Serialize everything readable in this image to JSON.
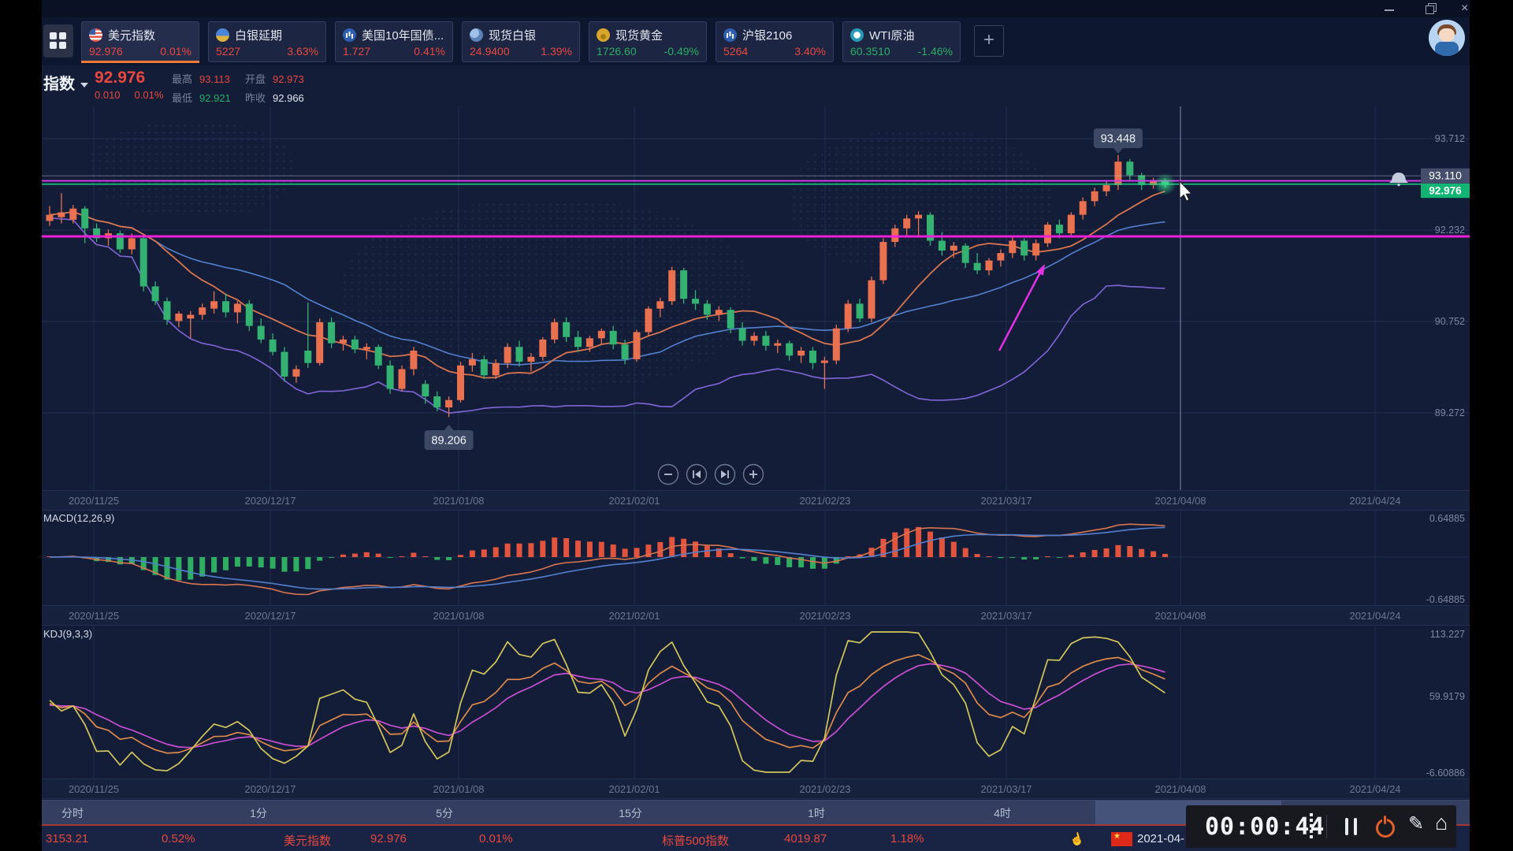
{
  "window": {
    "minimize": "minimize",
    "restore": "restore",
    "close": "close"
  },
  "add_tab_label": "+",
  "tabs": [
    {
      "name": "美元指数",
      "value": "92.976",
      "pct": "0.01%",
      "dir": "up",
      "icon": "us",
      "active": true
    },
    {
      "name": "白银延期",
      "value": "5227",
      "pct": "3.63%",
      "dir": "up",
      "icon": "silver",
      "active": false
    },
    {
      "name": "美国10年国债...",
      "value": "1.727",
      "pct": "0.41%",
      "dir": "up",
      "icon": "bond",
      "active": false
    },
    {
      "name": "现货白银",
      "value": "24.9400",
      "pct": "1.39%",
      "dir": "up",
      "icon": "spotsilver",
      "active": false
    },
    {
      "name": "现货黄金",
      "value": "1726.60",
      "pct": "-0.49%",
      "dir": "down",
      "icon": "gold",
      "active": false
    },
    {
      "name": "沪银2106",
      "value": "5264",
      "pct": "3.40%",
      "dir": "up",
      "icon": "shfe",
      "active": false
    },
    {
      "name": "WTI原油",
      "value": "60.3510",
      "pct": "-1.46%",
      "dir": "down",
      "icon": "wti",
      "active": false
    }
  ],
  "header": {
    "symbol": "指数",
    "price": "92.976",
    "change": "0.010",
    "change_pct": "0.01%",
    "stats": [
      {
        "label": "最高",
        "value": "93.113",
        "cls": "red"
      },
      {
        "label": "开盘",
        "value": "92.973",
        "cls": "red"
      },
      {
        "label": "最低",
        "value": "92.921",
        "cls": "green"
      },
      {
        "label": "昨收",
        "value": "92.966",
        "cls": "white"
      }
    ]
  },
  "chart_data": {
    "type": "candlestick",
    "symbol": "美元指数",
    "x_labels": [
      "2020/11/25",
      "2020/12/17",
      "2021/01/08",
      "2021/02/01",
      "2021/02/23",
      "2021/03/17",
      "2021/04/08",
      "2021/04/24"
    ],
    "y_axis_main": [
      "93.712",
      "92.232",
      "90.752",
      "89.272"
    ],
    "ma": {
      "fast": 10,
      "slow": 21
    },
    "candles": [
      [
        92.38,
        92.62,
        92.3,
        92.48
      ],
      [
        92.44,
        92.83,
        92.34,
        92.52
      ],
      [
        92.4,
        92.64,
        92.34,
        92.58
      ],
      [
        92.58,
        92.62,
        92.02,
        92.26
      ],
      [
        92.26,
        92.34,
        92.04,
        92.1
      ],
      [
        92.1,
        92.24,
        91.98,
        92.18
      ],
      [
        92.18,
        92.22,
        91.86,
        91.92
      ],
      [
        91.92,
        92.18,
        91.84,
        92.1
      ],
      [
        92.1,
        92.14,
        91.24,
        91.32
      ],
      [
        91.32,
        91.4,
        91.02,
        91.08
      ],
      [
        91.08,
        91.14,
        90.7,
        90.78
      ],
      [
        90.76,
        90.92,
        90.66,
        90.88
      ],
      [
        90.8,
        90.92,
        90.48,
        90.86
      ],
      [
        90.86,
        91.04,
        90.78,
        90.98
      ],
      [
        90.96,
        91.24,
        90.88,
        91.08
      ],
      [
        91.08,
        91.2,
        90.82,
        90.9
      ],
      [
        90.9,
        91.08,
        90.72,
        91.04
      ],
      [
        91.04,
        91.1,
        90.6,
        90.68
      ],
      [
        90.68,
        90.8,
        90.4,
        90.46
      ],
      [
        90.46,
        90.56,
        90.2,
        90.26
      ],
      [
        90.26,
        90.34,
        89.78,
        89.86
      ],
      [
        89.86,
        90.04,
        89.76,
        89.98
      ],
      [
        90.28,
        91.06,
        90.0,
        90.08
      ],
      [
        90.08,
        90.8,
        90.04,
        90.74
      ],
      [
        90.74,
        90.82,
        90.32,
        90.4
      ],
      [
        90.4,
        90.52,
        90.28,
        90.46
      ],
      [
        90.46,
        90.52,
        90.24,
        90.3
      ],
      [
        90.3,
        90.4,
        90.14,
        90.34
      ],
      [
        90.34,
        90.38,
        89.98,
        90.04
      ],
      [
        90.04,
        90.12,
        89.58,
        89.66
      ],
      [
        89.66,
        90.04,
        89.62,
        89.98
      ],
      [
        89.98,
        90.34,
        89.88,
        90.28
      ],
      [
        89.74,
        89.8,
        89.42,
        89.54
      ],
      [
        89.54,
        89.62,
        89.3,
        89.36
      ],
      [
        89.36,
        89.54,
        89.206,
        89.48
      ],
      [
        89.48,
        90.1,
        89.44,
        90.04
      ],
      [
        90.04,
        90.24,
        89.94,
        90.14
      ],
      [
        90.14,
        90.2,
        89.82,
        89.88
      ],
      [
        89.88,
        90.14,
        89.82,
        90.08
      ],
      [
        90.08,
        90.4,
        90.0,
        90.34
      ],
      [
        90.34,
        90.44,
        90.02,
        90.1
      ],
      [
        90.1,
        90.24,
        89.94,
        90.18
      ],
      [
        90.18,
        90.5,
        90.12,
        90.46
      ],
      [
        90.46,
        90.8,
        90.4,
        90.74
      ],
      [
        90.74,
        90.82,
        90.42,
        90.5
      ],
      [
        90.5,
        90.6,
        90.26,
        90.34
      ],
      [
        90.34,
        90.52,
        90.26,
        90.48
      ],
      [
        90.48,
        90.64,
        90.38,
        90.6
      ],
      [
        90.6,
        90.68,
        90.3,
        90.38
      ],
      [
        90.38,
        90.46,
        90.06,
        90.14
      ],
      [
        90.14,
        90.62,
        90.1,
        90.58
      ],
      [
        90.58,
        91.0,
        90.52,
        90.96
      ],
      [
        90.96,
        91.14,
        90.82,
        91.08
      ],
      [
        91.08,
        91.64,
        91.02,
        91.58
      ],
      [
        91.58,
        91.62,
        91.04,
        91.12
      ],
      [
        91.12,
        91.26,
        90.94,
        91.04
      ],
      [
        91.04,
        91.1,
        90.78,
        90.86
      ],
      [
        90.86,
        91.0,
        90.76,
        90.94
      ],
      [
        90.94,
        90.98,
        90.56,
        90.64
      ],
      [
        90.64,
        90.74,
        90.36,
        90.44
      ],
      [
        90.44,
        90.58,
        90.36,
        90.52
      ],
      [
        90.52,
        90.6,
        90.28,
        90.36
      ],
      [
        90.36,
        90.46,
        90.24,
        90.4
      ],
      [
        90.4,
        90.44,
        90.12,
        90.2
      ],
      [
        90.2,
        90.34,
        90.08,
        90.28
      ],
      [
        90.28,
        90.34,
        89.98,
        90.08
      ],
      [
        90.08,
        90.18,
        89.66,
        90.12
      ],
      [
        90.12,
        90.7,
        90.06,
        90.64
      ],
      [
        90.64,
        91.1,
        90.58,
        91.04
      ],
      [
        91.04,
        91.12,
        90.74,
        90.8
      ],
      [
        90.8,
        91.48,
        90.74,
        91.42
      ],
      [
        91.42,
        92.1,
        91.36,
        92.04
      ],
      [
        92.04,
        92.32,
        91.96,
        92.26
      ],
      [
        92.26,
        92.48,
        92.14,
        92.42
      ],
      [
        92.42,
        92.54,
        92.12,
        92.48
      ],
      [
        92.48,
        92.52,
        91.98,
        92.06
      ],
      [
        92.06,
        92.2,
        91.82,
        91.9
      ],
      [
        91.9,
        92.04,
        91.78,
        91.98
      ],
      [
        91.98,
        92.02,
        91.62,
        91.7
      ],
      [
        91.7,
        91.86,
        91.52,
        91.58
      ],
      [
        91.58,
        91.78,
        91.5,
        91.74
      ],
      [
        91.74,
        91.92,
        91.64,
        91.86
      ],
      [
        91.86,
        92.12,
        91.78,
        92.06
      ],
      [
        92.06,
        92.1,
        91.74,
        91.82
      ],
      [
        91.82,
        92.08,
        91.74,
        92.02
      ],
      [
        92.02,
        92.36,
        91.96,
        92.32
      ],
      [
        92.32,
        92.4,
        92.1,
        92.18
      ],
      [
        92.18,
        92.52,
        92.12,
        92.48
      ],
      [
        92.48,
        92.76,
        92.4,
        92.7
      ],
      [
        92.7,
        92.92,
        92.62,
        92.86
      ],
      [
        92.86,
        93.02,
        92.78,
        92.96
      ],
      [
        92.96,
        93.448,
        92.88,
        93.34
      ],
      [
        93.34,
        93.38,
        93.04,
        93.12
      ],
      [
        93.12,
        93.16,
        92.88,
        92.96
      ],
      [
        92.96,
        93.08,
        92.9,
        93.04
      ],
      [
        93.04,
        93.07,
        92.92,
        92.976
      ]
    ],
    "annotations": {
      "high_label": "93.448",
      "high_index": 91,
      "low_label": "89.206",
      "low_index": 34,
      "alert_price": 93.11,
      "alert_label": "93.110",
      "current_price": 92.976,
      "current_label": "92.976",
      "hlines": [
        {
          "price": 93.03,
          "color": "#cf3ae6",
          "width": 2
        },
        {
          "price": 92.13,
          "color": "#ee1fd8",
          "width": 3
        }
      ]
    },
    "indicators": {
      "macd": {
        "label": "MACD(12,26,9)",
        "axis_top": "0.64885",
        "axis_bottom": "-0.64885"
      },
      "kdj": {
        "label": "KDJ(9,3,3)",
        "axis": [
          "113.227",
          "59.9179",
          "-6.60886"
        ]
      }
    }
  },
  "timeframes": [
    "分时",
    "1分",
    "5分",
    "15分",
    "1时",
    "4时"
  ],
  "status_bar": {
    "items": [
      "3153.21",
      "0.52%",
      "美元指数",
      "92.976",
      "0.01%",
      "标普500指数",
      "4019.87",
      "1.18%"
    ],
    "date": "2021-04-"
  },
  "recorder": {
    "time": "00:00:44"
  }
}
